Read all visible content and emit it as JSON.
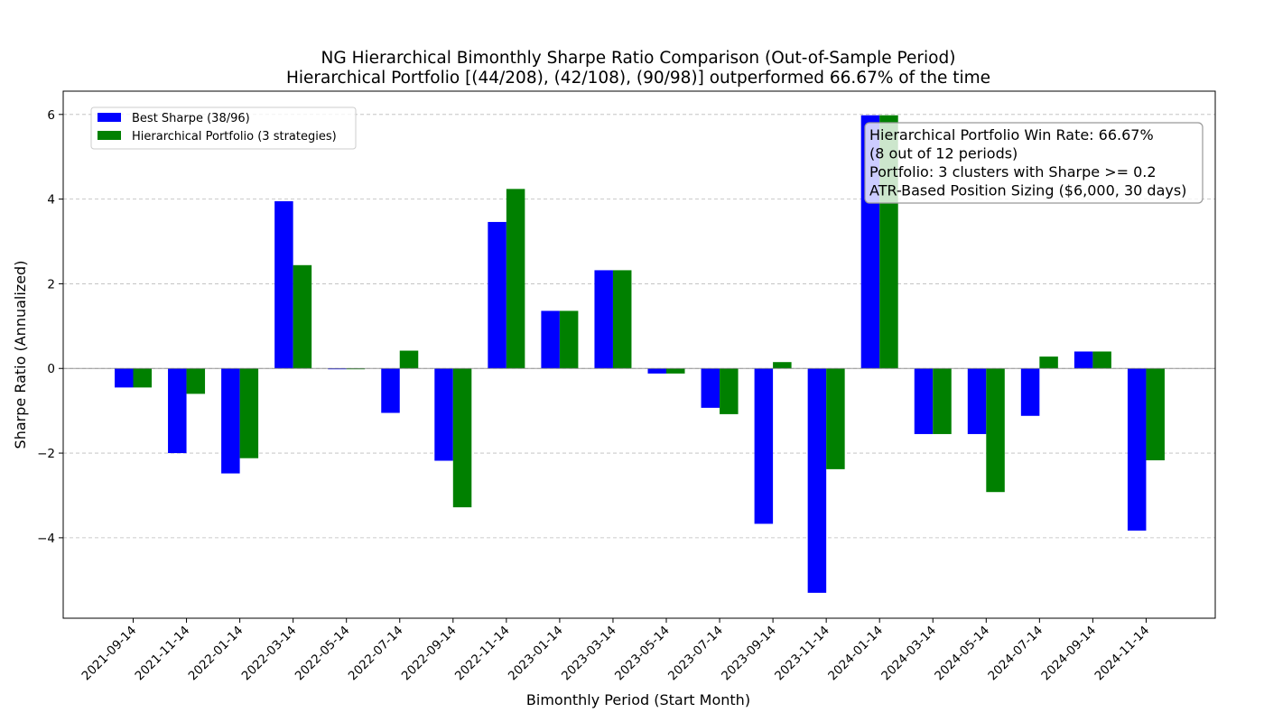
{
  "chart_data": {
    "type": "bar",
    "title": "NG Hierarchical Bimonthly Sharpe Ratio Comparison (Out-of-Sample Period)",
    "subtitle": "Hierarchical Portfolio [(44/208), (42/108), (90/98)] outperformed 66.67% of the time",
    "xlabel": "Bimonthly Period (Start Month)",
    "ylabel": "Sharpe Ratio (Annualized)",
    "ylim": [
      -5.9,
      6.55
    ],
    "yticks": [
      -4,
      -2,
      0,
      2,
      4,
      6
    ],
    "ytick_labels": [
      "−4",
      "−2",
      "0",
      "2",
      "4",
      "6"
    ],
    "grid": "horizontal dashed",
    "legend_position": "top-left",
    "categories": [
      "2021-09-14",
      "2021-11-14",
      "2022-01-14",
      "2022-03-14",
      "2022-05-14",
      "2022-07-14",
      "2022-09-14",
      "2022-11-14",
      "2023-01-14",
      "2023-03-14",
      "2023-05-14",
      "2023-07-14",
      "2023-09-14",
      "2023-11-14",
      "2024-01-14",
      "2024-03-14",
      "2024-05-14",
      "2024-07-14",
      "2024-09-14",
      "2024-11-14"
    ],
    "series": [
      {
        "name": "Best Sharpe (38/96)",
        "color": "#0000ff",
        "values": [
          -0.45,
          -2.0,
          -2.48,
          3.95,
          -0.02,
          -1.05,
          -2.18,
          3.46,
          1.36,
          2.32,
          -0.12,
          -0.93,
          -3.67,
          -5.3,
          5.98,
          -1.55,
          -1.55,
          -1.12,
          0.4,
          -3.83
        ]
      },
      {
        "name": "Hierarchical Portfolio (3 strategies)",
        "color": "#008000",
        "values": [
          -0.45,
          -0.6,
          -2.12,
          2.44,
          -0.02,
          0.42,
          -3.28,
          4.24,
          1.36,
          2.32,
          -0.12,
          -1.08,
          0.15,
          -2.38,
          5.98,
          -1.55,
          -2.92,
          0.28,
          0.4,
          -2.17
        ]
      }
    ],
    "annotation": [
      "Hierarchical Portfolio Win Rate: 66.67%",
      "(8 out of 12 periods)",
      "Portfolio: 3 clusters with Sharpe >= 0.2",
      "ATR-Based Position Sizing ($6,000, 30 days)"
    ]
  }
}
